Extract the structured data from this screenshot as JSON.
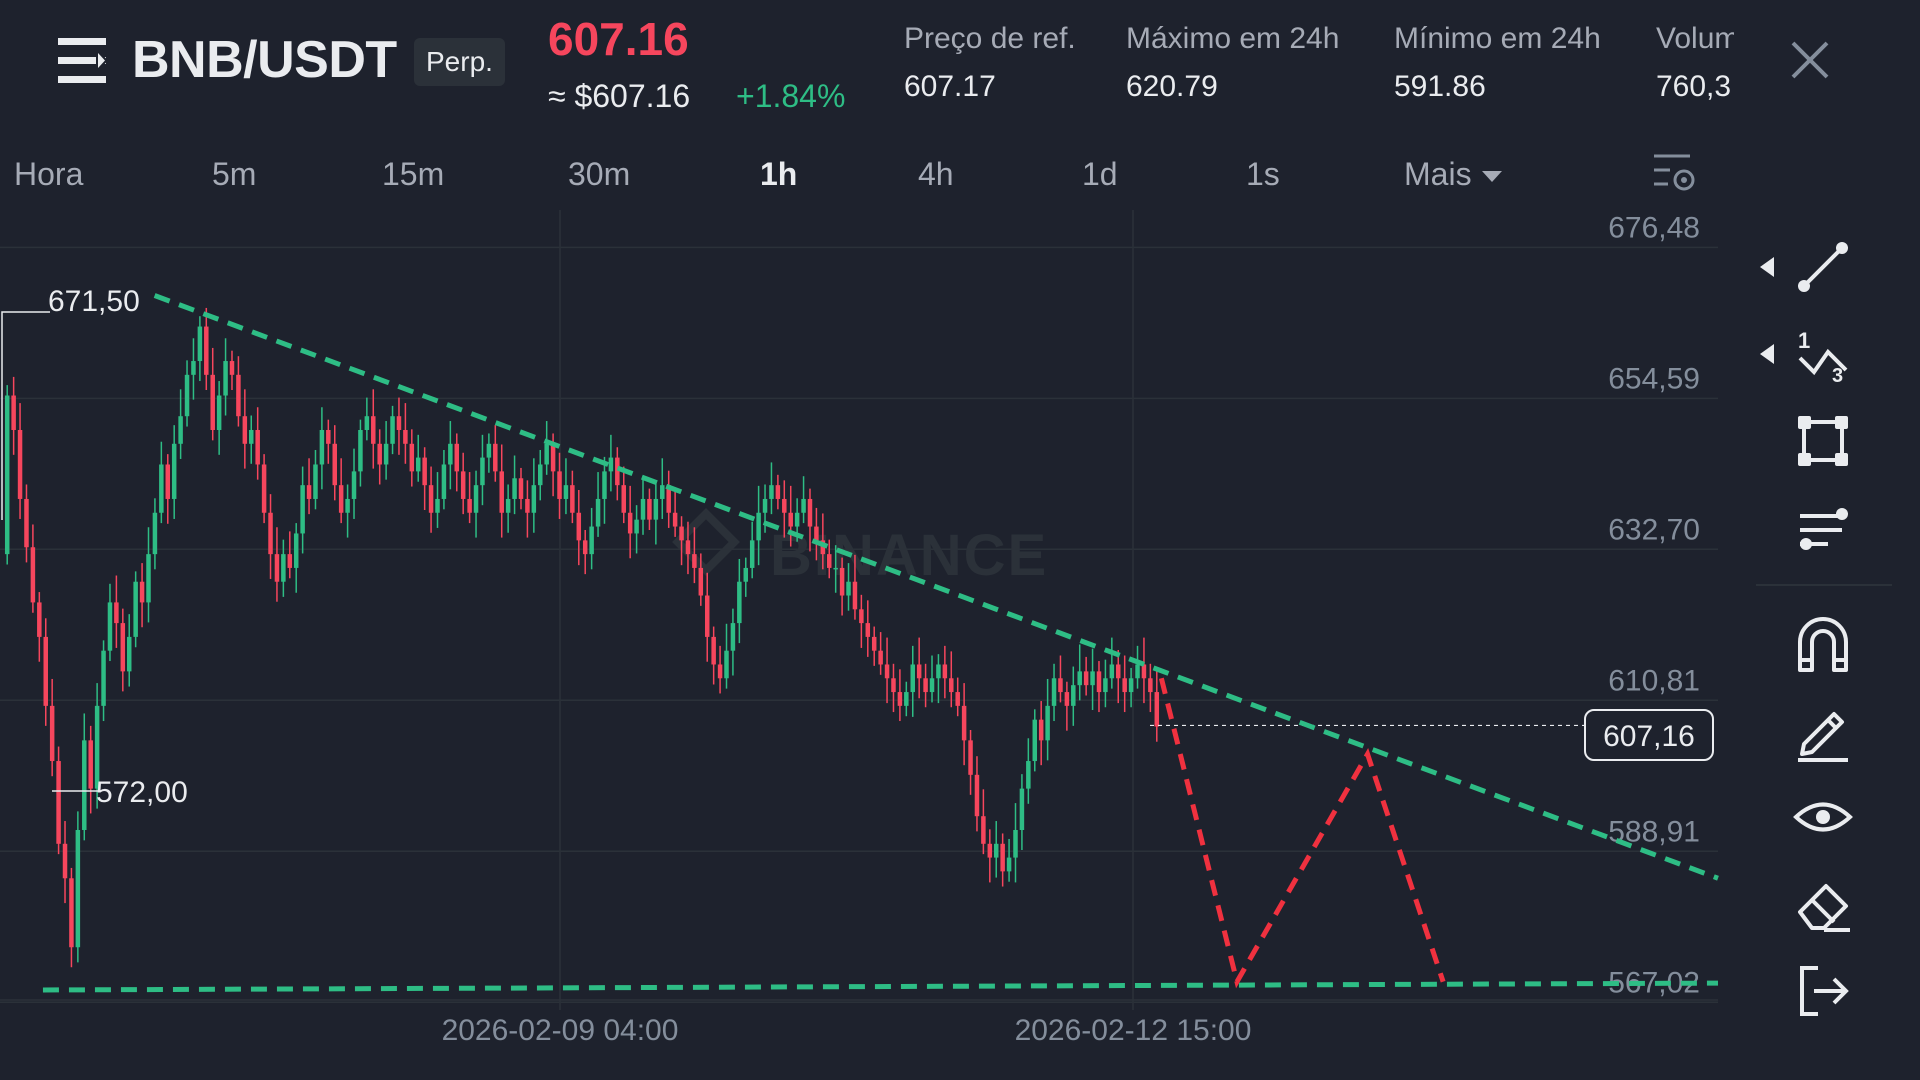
{
  "header": {
    "pair": "BNB/USDT",
    "contract_type": "Perp.",
    "last_price": "607.16",
    "usd_price": "≈ $607.16",
    "change_pct": "+1.84%",
    "stats": [
      {
        "label": "Preço de ref.",
        "value": "607.17"
      },
      {
        "label": "Máximo em 24h",
        "value": "620.79"
      },
      {
        "label": "Mínimo em 24h",
        "value": "591.86"
      },
      {
        "label": "Volume",
        "value": "760,3"
      }
    ]
  },
  "timeframes": [
    {
      "label": "Hora",
      "active": false
    },
    {
      "label": "5m",
      "active": false
    },
    {
      "label": "15m",
      "active": false
    },
    {
      "label": "30m",
      "active": false
    },
    {
      "label": "1h",
      "active": true
    },
    {
      "label": "4h",
      "active": false
    },
    {
      "label": "1d",
      "active": false
    },
    {
      "label": "1s",
      "active": false
    },
    {
      "label": "Mais",
      "active": false
    }
  ],
  "chart_data": {
    "type": "candlestick",
    "y_ticks": [
      "676,48",
      "654,59",
      "632,70",
      "610,81",
      "588,91",
      "567,02"
    ],
    "x_ticks": [
      "2026-02-09 04:00",
      "2026-02-12 15:00"
    ],
    "ylim": [
      563,
      679
    ],
    "high_marker": "671,50",
    "low_marker": "572,00",
    "current_price": "607,16",
    "watermark": "BINANCE",
    "up_color": "#2ebd85",
    "down_color": "#f6465d",
    "closes_start": 632,
    "closes": [
      655,
      650,
      640,
      633,
      625,
      620,
      610,
      602,
      590,
      585,
      575,
      592,
      605,
      598,
      610,
      618,
      625,
      622,
      615,
      620,
      628,
      625,
      632,
      638,
      645,
      640,
      648,
      652,
      658,
      660,
      665,
      658,
      650,
      655,
      660,
      658,
      652,
      648,
      650,
      645,
      638,
      632,
      628,
      632,
      630,
      635,
      642,
      640,
      645,
      650,
      648,
      642,
      638,
      640,
      644,
      650,
      652,
      648,
      645,
      648,
      652,
      650,
      648,
      644,
      646,
      642,
      638,
      640,
      645,
      648,
      644,
      640,
      638,
      642,
      646,
      648,
      644,
      638,
      640,
      643,
      640,
      638,
      642,
      645,
      648,
      644,
      640,
      642,
      638,
      634,
      632,
      636,
      640,
      644,
      646,
      642,
      638,
      635,
      637,
      640,
      637,
      640,
      642,
      638,
      636,
      634,
      632,
      630,
      626,
      620,
      616,
      614,
      618,
      622,
      628,
      630,
      634,
      638,
      640,
      642,
      640,
      638,
      636,
      638,
      640,
      636,
      634,
      632,
      630,
      630,
      626,
      628,
      624,
      622,
      620,
      618,
      616,
      614,
      612,
      610,
      612,
      616,
      614,
      612,
      614,
      616,
      614,
      612,
      610,
      605,
      600,
      594,
      590,
      588,
      590,
      586,
      588,
      592,
      598,
      602,
      608,
      605,
      610,
      614,
      612,
      610,
      613,
      615,
      613,
      615,
      612,
      614,
      616,
      614,
      612,
      614,
      616,
      614,
      612,
      607
    ],
    "trendline_upper": [
      {
        "x": 0.09,
        "y": 669.5
      },
      {
        "x": 1.0,
        "y": 585.0
      }
    ],
    "trendline_lower": [
      {
        "x": 0.025,
        "y": 568.8
      },
      {
        "x": 1.0,
        "y": 569.8
      }
    ],
    "projection_path": [
      {
        "x": 0.676,
        "y": 614.0
      },
      {
        "x": 0.72,
        "y": 570.0
      },
      {
        "x": 0.796,
        "y": 603.0
      },
      {
        "x": 0.84,
        "y": 570.0
      }
    ],
    "colors": {
      "trendline": "#2ebd85",
      "projection": "#f0313f",
      "grid": "#2b3139"
    }
  },
  "toolbar": {
    "tools": [
      "trend-line-icon",
      "fib-icon",
      "rectangle-icon",
      "settings-lines-icon",
      "magnet-icon",
      "pencil-icon",
      "eye-icon",
      "eraser-icon",
      "exit-icon"
    ]
  }
}
